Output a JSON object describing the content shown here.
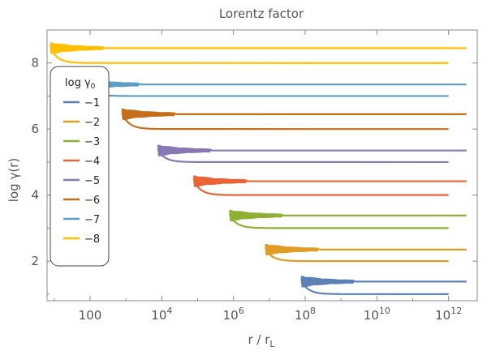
{
  "chart_data": {
    "type": "line",
    "title": "Lorentz factor",
    "xlabel": "r / r",
    "xlabel_sub": "L",
    "ylabel": "log γ(r)",
    "xscale": "log",
    "xlim_log10": [
      0.8,
      12.8
    ],
    "ylim": [
      0.8,
      9.0
    ],
    "xticks": [
      {
        "log10": 2,
        "base": "100",
        "exp": ""
      },
      {
        "log10": 4,
        "base": "10",
        "exp": "4"
      },
      {
        "log10": 6,
        "base": "10",
        "exp": "6"
      },
      {
        "log10": 8,
        "base": "10",
        "exp": "8"
      },
      {
        "log10": 10,
        "base": "10",
        "exp": "10"
      },
      {
        "log10": 12,
        "base": "10",
        "exp": "12"
      }
    ],
    "yticks": [
      2,
      4,
      6,
      8
    ],
    "legend": {
      "title": "log γ",
      "title_sub": "0",
      "position": "upper-left"
    },
    "series": [
      {
        "name": "−1",
        "color": "#5e81b5",
        "upper": 1.38,
        "lower": 1.0,
        "start_log10": 7.9
      },
      {
        "name": "−2",
        "color": "#e19c24",
        "upper": 2.35,
        "lower": 2.0,
        "start_log10": 6.9
      },
      {
        "name": "−3",
        "color": "#8fb032",
        "upper": 3.38,
        "lower": 3.0,
        "start_log10": 5.9
      },
      {
        "name": "−4",
        "color": "#eb6235",
        "upper": 4.42,
        "lower": 4.0,
        "start_log10": 4.9
      },
      {
        "name": "−5",
        "color": "#8778b3",
        "upper": 5.35,
        "lower": 5.0,
        "start_log10": 3.9
      },
      {
        "name": "−6",
        "color": "#c56e1a",
        "upper": 6.45,
        "lower": 6.0,
        "start_log10": 2.9
      },
      {
        "name": "−7",
        "color": "#5d9ec7",
        "upper": 7.35,
        "lower": 7.0,
        "start_log10": 1.9
      },
      {
        "name": "−8",
        "color": "#ffbf00",
        "upper": 8.45,
        "lower": 8.0,
        "start_log10": 0.9
      }
    ],
    "upper_end_log10": 12.5,
    "lower_end_log10": 12.0
  }
}
